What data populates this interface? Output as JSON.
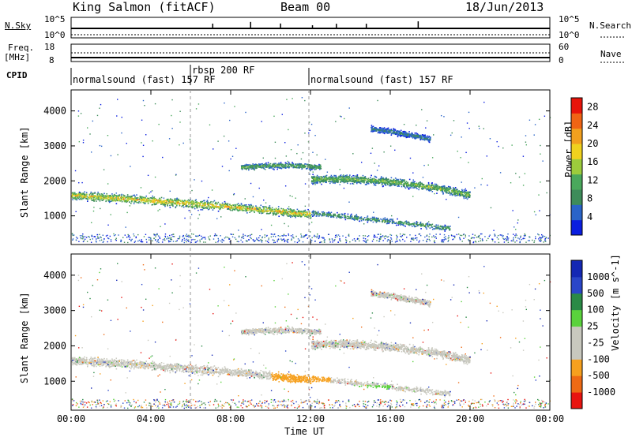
{
  "header": {
    "title": "King Salmon (fitACF)",
    "beam": "Beam 00",
    "date": "18/Jun/2013"
  },
  "strip_panels": {
    "nsky_label": "N.Sky",
    "nsearch_label": "N.Search",
    "left_top_tick": "10^5",
    "left_bottom_tick": "10^0",
    "right_top_tick": "10^5",
    "right_bottom_tick": "10^0",
    "freq_label_line1": "Freq.",
    "freq_label_line2": "[MHz]",
    "freq_ticks": [
      "18",
      "8"
    ],
    "nave_label": "Nave",
    "nave_ticks": [
      "60",
      "0"
    ],
    "cpid_label": "CPID"
  },
  "cpid_segments": [
    {
      "label": "normalsound (fast) 157 RF",
      "start_hour": 0
    },
    {
      "label": "rbsp 200 RF",
      "start_hour": 6
    },
    {
      "label": "normalsound (fast) 157 RF",
      "start_hour": 12
    }
  ],
  "colors": {
    "power_scale": [
      "#0a1ee0",
      "#2a64c8",
      "#3e8c5a",
      "#4aa85c",
      "#9ccc3c",
      "#f0d21e",
      "#f2a01e",
      "#f06414",
      "#e8140a"
    ],
    "velocity_scale": [
      "#e81410",
      "#ee6a14",
      "#f6a01e",
      "#c8c8be",
      "#c8c8be",
      "#5ad23c",
      "#2a8a46",
      "#2a46c8",
      "#1428b4"
    ],
    "ground_scatter": "#c8c8be"
  },
  "chart_data": [
    {
      "type": "heatmap",
      "name": "power",
      "x_unit_label": "Time UT",
      "ylabel": "Slant Range [km]",
      "xlim": [
        0,
        24
      ],
      "ylim": [
        180,
        4600
      ],
      "y_ticks": [
        1000,
        2000,
        3000,
        4000
      ],
      "colorbar": {
        "label": "Power [dB]",
        "range": [
          0,
          30
        ],
        "ticks": [
          4,
          8,
          12,
          16,
          20,
          24,
          28
        ]
      },
      "features": [
        {
          "t0": 0,
          "t1": 12,
          "range_start": 1600,
          "range_end": 1050,
          "mid_range": 1400,
          "peak_db": 26
        },
        {
          "t0": 12,
          "t1": 20,
          "range_start": 2050,
          "range_end": 1600,
          "mid_range": 2150,
          "peak_db": 18
        },
        {
          "t0": 8.5,
          "t1": 12.5,
          "range_start": 2400,
          "range_end": 2400,
          "mid_range": 2500,
          "peak_db": 16
        },
        {
          "t0": 15,
          "t1": 18,
          "range_start": 3500,
          "range_end": 3200,
          "mid_range": 3400,
          "peak_db": 10
        },
        {
          "t0": 12,
          "t1": 19,
          "range_start": 1100,
          "range_end": 650,
          "mid_range": 900,
          "peak_db": 14
        }
      ]
    },
    {
      "type": "heatmap",
      "name": "velocity",
      "x_unit_label": "Time UT",
      "ylabel": "Slant Range [km]",
      "xlim": [
        0,
        24
      ],
      "ylim": [
        180,
        4600
      ],
      "y_ticks": [
        1000,
        2000,
        3000,
        4000
      ],
      "colorbar": {
        "label": "Velocity [m s^-1]",
        "ticks": [
          "1000",
          "500",
          "100",
          "25",
          "-25",
          "-100",
          "-500",
          "-1000"
        ]
      },
      "x_ticks": [
        "00:00",
        "04:00",
        "08:00",
        "12:00",
        "16:00",
        "20:00",
        "00:00"
      ]
    }
  ],
  "xaxis": {
    "label": "Time UT",
    "ticks": [
      "00:00",
      "04:00",
      "08:00",
      "12:00",
      "16:00",
      "20:00",
      "00:00"
    ]
  }
}
